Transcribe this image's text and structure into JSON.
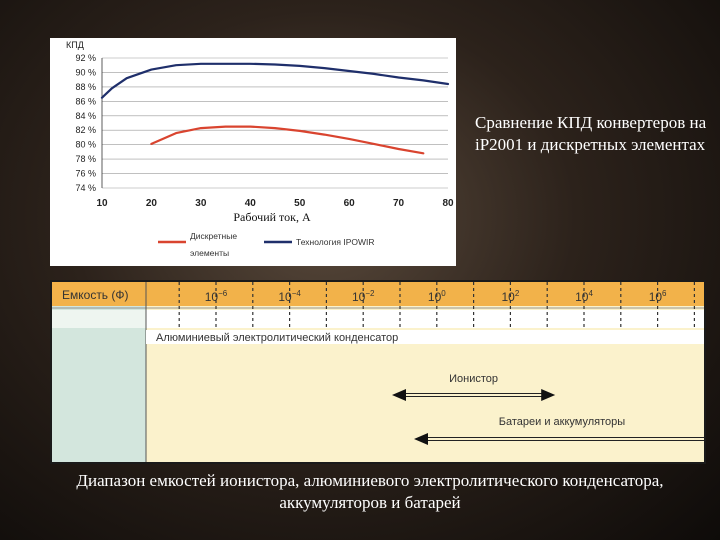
{
  "caption_top": "Сравнение КПД конвертеров на iP2001 и дискретных элементах",
  "caption_bottom": "Диапазон емкостей ионистора, алюминиевого электролитического конденсатора, аккумуляторов и батарей",
  "chart_data": [
    {
      "type": "line",
      "ylabel": "КПД",
      "xlabel": "Рабочий ток, А",
      "xlim": [
        10,
        80
      ],
      "ylim": [
        74,
        92
      ],
      "x_ticks": [
        "10",
        "20",
        "30",
        "40",
        "50",
        "60",
        "70",
        "80"
      ],
      "y_ticks": [
        "74 %",
        "76 %",
        "78 %",
        "80 %",
        "82 %",
        "84 %",
        "86 %",
        "88 %",
        "90 %",
        "92 %"
      ],
      "grid": "horizontal",
      "legend_position": "bottom",
      "series": [
        {
          "name": "Технология IPOWIR",
          "color": "#1f2f6b",
          "x": [
            10,
            12,
            15,
            20,
            25,
            30,
            35,
            40,
            45,
            50,
            55,
            60,
            65,
            70,
            75,
            80
          ],
          "y": [
            86.5,
            87.8,
            89.2,
            90.4,
            91.0,
            91.2,
            91.2,
            91.2,
            91.1,
            90.9,
            90.6,
            90.2,
            89.8,
            89.3,
            88.9,
            88.4
          ]
        },
        {
          "name": "Дискретные элементы",
          "color": "#d9442f",
          "x": [
            20,
            25,
            30,
            35,
            40,
            45,
            50,
            55,
            60,
            65,
            70,
            75
          ],
          "y": [
            80.1,
            81.6,
            82.3,
            82.5,
            82.5,
            82.3,
            81.9,
            81.4,
            80.8,
            80.1,
            79.4,
            78.8
          ]
        }
      ]
    },
    {
      "type": "range",
      "header_label": "Емкость (Ф)",
      "ticks": [
        {
          "base": "10",
          "exp": "−6"
        },
        {
          "base": "10",
          "exp": "−4"
        },
        {
          "base": "10",
          "exp": "−2"
        },
        {
          "base": "10",
          "exp": "0"
        },
        {
          "base": "10",
          "exp": "2"
        },
        {
          "base": "10",
          "exp": "4"
        },
        {
          "base": "10",
          "exp": "6"
        }
      ],
      "bars": [
        {
          "label": "Алюминиевый электролитический конденсатор",
          "from_exp": -7,
          "to_exp": 7,
          "arrow_left": false,
          "arrow_right": false
        },
        {
          "label": "Ионистор",
          "from_exp": -1,
          "to_exp": 3,
          "arrow_left": true,
          "arrow_right": true
        },
        {
          "label": "Батареи и аккумуляторы",
          "from_exp": 0,
          "to_exp": 7,
          "arrow_left": true,
          "arrow_right": false
        }
      ],
      "colors": {
        "header": "#f2b24a",
        "left_column": "#d3e6dd",
        "body": "#fbf2cc"
      }
    }
  ]
}
